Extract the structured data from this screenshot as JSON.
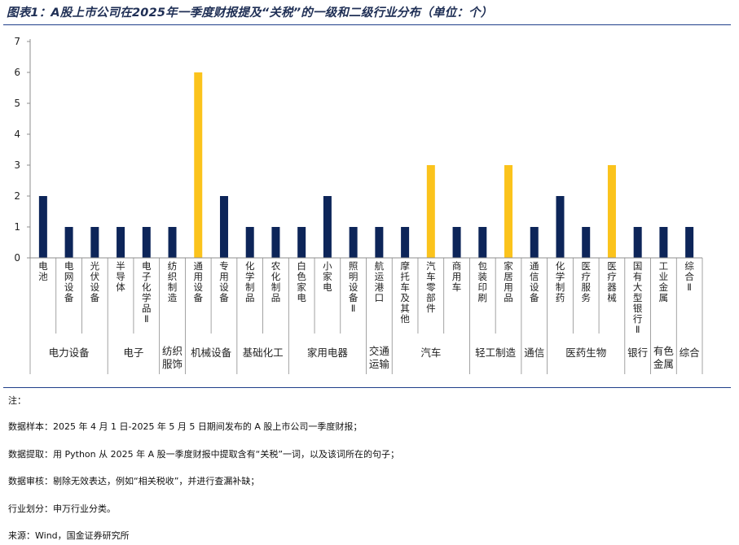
{
  "title": "图表1：A股上市公司在2025年一季度财报提及“关税”的一级和二级行业分布（单位：个）",
  "colors": {
    "primary": "#0d2559",
    "highlight": "#fbc31c",
    "axis": "#8c8c8c",
    "rule": "#1f3f8a"
  },
  "chart_data": {
    "type": "bar",
    "ylim": [
      0,
      7
    ],
    "yticks": [
      0,
      1,
      2,
      3,
      4,
      5,
      6,
      7
    ],
    "grid": false,
    "categories": [
      "电池",
      "电网设备",
      "光伏设备",
      "半导体",
      "电子化学品Ⅱ",
      "纺织制造",
      "通用设备",
      "专用设备",
      "化学制品",
      "农化制品",
      "白色家电",
      "小家电",
      "照明设备Ⅱ",
      "航运港口",
      "摩托车及其他",
      "汽车零部件",
      "商用车",
      "包装印刷",
      "家居用品",
      "通信设备",
      "化学制药",
      "医疗服务",
      "医疗器械",
      "国有大型银行Ⅱ",
      "工业金属",
      "综合Ⅱ"
    ],
    "values": [
      2,
      1,
      1,
      1,
      1,
      1,
      6,
      2,
      1,
      1,
      1,
      2,
      1,
      1,
      1,
      3,
      1,
      1,
      3,
      1,
      2,
      1,
      3,
      1,
      1,
      1
    ],
    "highlight": [
      false,
      false,
      false,
      false,
      false,
      false,
      true,
      false,
      false,
      false,
      false,
      false,
      false,
      false,
      false,
      true,
      false,
      false,
      true,
      false,
      false,
      false,
      true,
      false,
      false,
      false
    ],
    "groups": [
      {
        "label": "电力设备",
        "lines": [
          "电力设备"
        ],
        "start": 0,
        "end": 2
      },
      {
        "label": "电子",
        "lines": [
          "电子"
        ],
        "start": 3,
        "end": 4
      },
      {
        "label": "纺织服饰",
        "lines": [
          "纺织",
          "服饰"
        ],
        "start": 5,
        "end": 5
      },
      {
        "label": "机械设备",
        "lines": [
          "机械设备"
        ],
        "start": 6,
        "end": 7
      },
      {
        "label": "基础化工",
        "lines": [
          "基础化工"
        ],
        "start": 8,
        "end": 9
      },
      {
        "label": "家用电器",
        "lines": [
          "家用电器"
        ],
        "start": 10,
        "end": 12
      },
      {
        "label": "交通运输",
        "lines": [
          "交通",
          "运输"
        ],
        "start": 13,
        "end": 13
      },
      {
        "label": "汽车",
        "lines": [
          "汽车"
        ],
        "start": 14,
        "end": 16
      },
      {
        "label": "轻工制造",
        "lines": [
          "轻工制造"
        ],
        "start": 17,
        "end": 18
      },
      {
        "label": "通信",
        "lines": [
          "通信"
        ],
        "start": 19,
        "end": 19
      },
      {
        "label": "医药生物",
        "lines": [
          "医药生物"
        ],
        "start": 20,
        "end": 22
      },
      {
        "label": "银行",
        "lines": [
          "银行"
        ],
        "start": 23,
        "end": 23
      },
      {
        "label": "有色金属",
        "lines": [
          "有色",
          "金属"
        ],
        "start": 24,
        "end": 24
      },
      {
        "label": "综合",
        "lines": [
          "综合"
        ],
        "start": 25,
        "end": 25
      }
    ]
  },
  "notes": [
    "注：",
    "数据样本：2025 年 4 月 1 日-2025 年 5 月 5 日期间发布的 A 股上市公司一季度财报；",
    "数据提取：用 Python 从 2025 年 A 股一季度财报中提取含有“关税”一词，以及该词所在的句子；",
    "数据审核：剔除无效表达，例如“相关税收”，并进行查漏补缺；",
    "行业划分：申万行业分类。",
    "来源：Wind，国金证券研究所"
  ]
}
